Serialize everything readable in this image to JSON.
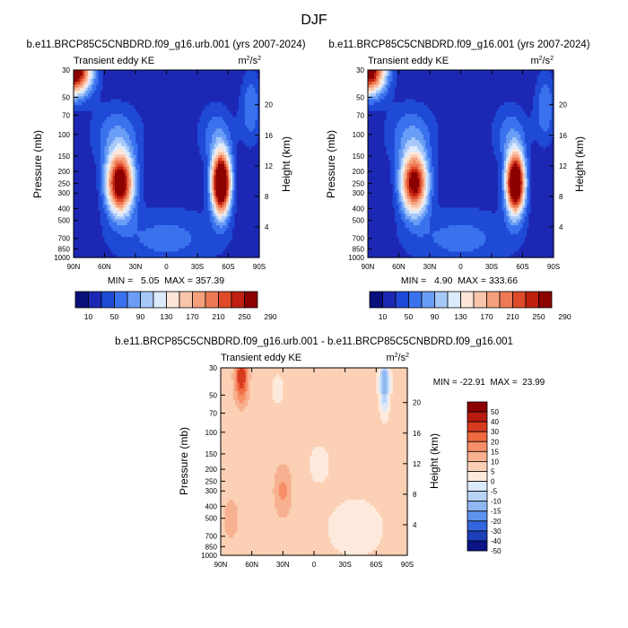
{
  "figure_title": "DJF",
  "chart_data": [
    {
      "type": "heatmap",
      "panel": "panel1",
      "title": "b.e11.BRCP85C5CNBDRD.f09_g16.urb.001 (yrs 2007-2024)",
      "subtitle_left": "Transient eddy KE",
      "units": "m²/s²",
      "units_base": "m",
      "units_sup1": "2",
      "units_mid": "/s",
      "units_sup2": "2",
      "ylabel": "Pressure (mb)",
      "ylabel_right": "Height (km)",
      "xticks": [
        "90N",
        "60N",
        "30N",
        "0",
        "30S",
        "60S",
        "90S"
      ],
      "yticks": [
        30,
        50,
        70,
        100,
        150,
        200,
        250,
        300,
        400,
        500,
        700,
        850,
        1000
      ],
      "right_ticks": [
        20,
        16,
        12,
        8,
        4
      ],
      "xlim": [
        90,
        -90
      ],
      "ylim": [
        1000,
        30
      ],
      "stats": "MIN =   5.05  MAX = 357.39",
      "features": [
        {
          "lat": 45,
          "p": 250,
          "value": 300,
          "desc": "NH subtropical jet maximum"
        },
        {
          "lat": -53,
          "p": 250,
          "value": 350,
          "desc": "SH jet maximum"
        },
        {
          "lat": 88,
          "p": 30,
          "value": 290,
          "desc": "NH polar stratosphere"
        },
        {
          "lat": 15,
          "p": 50,
          "value": 5,
          "desc": "tropical stratosphere minimum"
        },
        {
          "lat": -15,
          "p": 50,
          "value": 5,
          "desc": "tropical stratosphere minimum"
        }
      ],
      "colorbar_labels": [
        "10",
        "50",
        "90",
        "130",
        "170",
        "210",
        "250",
        "290"
      ]
    },
    {
      "type": "heatmap",
      "panel": "panel2",
      "title": "b.e11.BRCP85C5CNBDRD.f09_g16.001 (yrs 2007-2024)",
      "subtitle_left": "Transient eddy KE",
      "units": "m²/s²",
      "units_base": "m",
      "units_sup1": "2",
      "units_mid": "/s",
      "units_sup2": "2",
      "ylabel": "Pressure (mb)",
      "ylabel_right": "Height (km)",
      "xticks": [
        "90N",
        "60N",
        "30N",
        "0",
        "30S",
        "60S",
        "90S"
      ],
      "yticks": [
        30,
        50,
        70,
        100,
        150,
        200,
        250,
        300,
        400,
        500,
        700,
        850,
        1000
      ],
      "right_ticks": [
        20,
        16,
        12,
        8,
        4
      ],
      "xlim": [
        90,
        -90
      ],
      "ylim": [
        1000,
        30
      ],
      "stats": "MIN =   4.90  MAX = 333.66",
      "features": [
        {
          "lat": 45,
          "p": 250,
          "value": 280,
          "desc": "NH subtropical jet maximum"
        },
        {
          "lat": -53,
          "p": 250,
          "value": 330,
          "desc": "SH jet maximum"
        },
        {
          "lat": 88,
          "p": 30,
          "value": 270,
          "desc": "NH polar stratosphere"
        }
      ],
      "colorbar_labels": [
        "10",
        "50",
        "90",
        "130",
        "170",
        "210",
        "250",
        "290"
      ]
    },
    {
      "type": "heatmap",
      "panel": "panel3",
      "title": "b.e11.BRCP85C5CNBDRD.f09_g16.urb.001 - b.e11.BRCP85C5CNBDRD.f09_g16.001",
      "subtitle_left": "Transient eddy KE",
      "units": "m²/s²",
      "units_base": "m",
      "units_sup1": "2",
      "units_mid": "/s",
      "units_sup2": "2",
      "ylabel": "Pressure (mb)",
      "ylabel_right": "Height (km)",
      "xticks": [
        "90N",
        "60N",
        "30N",
        "0",
        "30S",
        "60S",
        "90S"
      ],
      "yticks": [
        30,
        50,
        70,
        100,
        150,
        200,
        250,
        300,
        400,
        500,
        700,
        850,
        1000
      ],
      "right_ticks": [
        20,
        16,
        12,
        8,
        4
      ],
      "xlim": [
        90,
        -90
      ],
      "ylim": [
        1000,
        30
      ],
      "stats": "MIN = -22.91  MAX =  23.99",
      "features": [
        {
          "lat": 70,
          "p": 35,
          "value": 22,
          "desc": "positive anomaly NH high latitude stratosphere"
        },
        {
          "lat": -68,
          "p": 40,
          "value": -20,
          "desc": "negative anomaly SH high latitude stratosphere"
        }
      ],
      "colorbar_labels": [
        "50",
        "40",
        "30",
        "20",
        "15",
        "10",
        "5",
        "0",
        "-5",
        "-10",
        "-15",
        "-20",
        "-30",
        "-40",
        "-50"
      ]
    }
  ],
  "colors": {
    "seq": [
      "#08107a",
      "#1c28b4",
      "#1f4ad6",
      "#3a72ee",
      "#6a9df5",
      "#a6c8f9",
      "#dceafd",
      "#fde5d8",
      "#f8c4aa",
      "#f5a07c",
      "#ee7a55",
      "#de4a2a",
      "#c02010",
      "#8c0000"
    ],
    "div": [
      "#8c0000",
      "#b81a10",
      "#d83a20",
      "#ef6a40",
      "#f68e68",
      "#f8b190",
      "#fbd0b4",
      "#feeadc",
      "#dceafd",
      "#b8d3f8",
      "#8fb8f3",
      "#5f92ec",
      "#3366dd",
      "#1c3fba",
      "#0b1584"
    ]
  }
}
